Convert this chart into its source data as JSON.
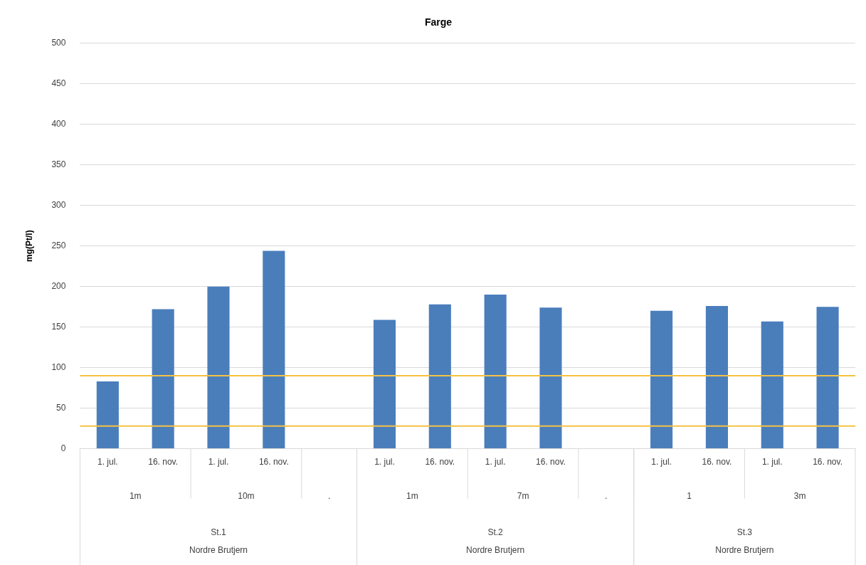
{
  "chart_data": {
    "type": "bar",
    "title": "Farge",
    "ylabel": "mg(Pt/l)",
    "categories": [
      "1. jul.",
      "16. nov.",
      "1. jul.",
      "16. nov.",
      null,
      "1. jul.",
      "16. nov.",
      "1. jul.",
      "16. nov.",
      null,
      "1. jul.",
      "16. nov.",
      "1. jul.",
      "16. nov."
    ],
    "values": [
      83,
      172,
      200,
      244,
      null,
      159,
      178,
      190,
      174,
      null,
      170,
      176,
      157,
      175
    ],
    "color": "#4a7ebb",
    "ylim": [
      0,
      500
    ],
    "yticks": [
      0,
      50,
      100,
      150,
      200,
      250,
      300,
      350,
      400,
      450,
      500
    ],
    "grid": "y",
    "legend": false,
    "ref_lines": [
      {
        "axis": "y",
        "value": 90,
        "color": "#f5c242"
      },
      {
        "axis": "y",
        "value": 28,
        "color": "#f5c242"
      }
    ],
    "annotations": [
      "1m",
      "10m",
      ".",
      "1m",
      "7m",
      ".",
      "1",
      "3m",
      "St.1",
      "St.2",
      "St.3",
      "Nordre Brutjern",
      "Nordre Brutjern",
      "Nordre Brutjern"
    ]
  }
}
